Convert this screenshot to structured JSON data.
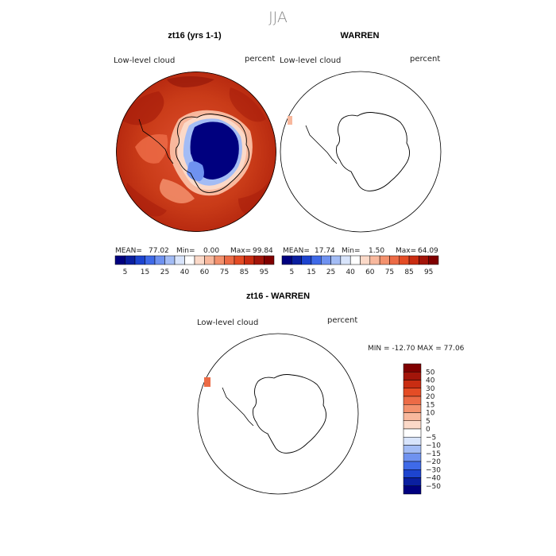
{
  "title": "JJA",
  "palette_abs": [
    "#00007f",
    "#0a1fa0",
    "#1d44cf",
    "#3f6ae8",
    "#6f92f0",
    "#a3bcf5",
    "#d8e4fb",
    "#ffffff",
    "#fbd9c8",
    "#f8b89d",
    "#f3916d",
    "#ec6b46",
    "#e44c25",
    "#c92d12",
    "#a3150a",
    "#800000"
  ],
  "palette_diff": [
    "#00007f",
    "#0a1fa0",
    "#1d44cf",
    "#3f6ae8",
    "#6f92f0",
    "#a3bcf5",
    "#d8e4fb",
    "#ffffff",
    "#fbd9c8",
    "#f8b89d",
    "#f3916d",
    "#ec6b46",
    "#e44c25",
    "#c92d12",
    "#a3150a",
    "#800000"
  ],
  "panels": [
    {
      "title": "zt16 (yrs 1-1)",
      "variable": "Low-level cloud",
      "units": "percent",
      "stats": {
        "mean_label": "MEAN=",
        "mean": "77.02",
        "min_label": "Min=",
        "min": "0.00",
        "max_label": "Max=",
        "max": "99.84"
      },
      "colorbar_ticks": [
        "5",
        "15",
        "25",
        "40",
        "60",
        "75",
        "85",
        "95"
      ]
    },
    {
      "title": "WARREN",
      "variable": "Low-level cloud",
      "units": "percent",
      "stats": {
        "mean_label": "MEAN=",
        "mean": "17.74",
        "min_label": "Min=",
        "min": "1.50",
        "max_label": "Max=",
        "max": "64.09"
      },
      "colorbar_ticks": [
        "5",
        "15",
        "25",
        "40",
        "60",
        "75",
        "85",
        "95"
      ]
    }
  ],
  "difference": {
    "title": "zt16 - WARREN",
    "variable": "Low-level cloud",
    "units": "percent",
    "minmax": "MIN = -12.70 MAX =  77.06",
    "colorbar_ticks": [
      "50",
      "40",
      "30",
      "20",
      "15",
      "10",
      "5",
      "0",
      "−5",
      "−10",
      "−15",
      "−20",
      "−30",
      "−40",
      "−50"
    ]
  }
}
